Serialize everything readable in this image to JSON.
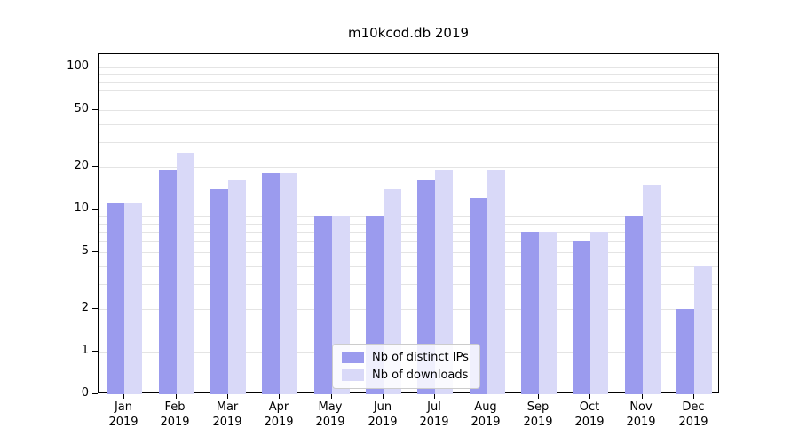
{
  "chart_data": {
    "type": "bar",
    "title": "m10kcod.db 2019",
    "categories": [
      "Jan 2019",
      "Feb 2019",
      "Mar 2019",
      "Apr 2019",
      "May 2019",
      "Jun 2019",
      "Jul 2019",
      "Aug 2019",
      "Sep 2019",
      "Oct 2019",
      "Nov 2019",
      "Dec 2019"
    ],
    "series": [
      {
        "name": "Nb of distinct IPs",
        "color": "#9b9bee",
        "values": [
          11,
          19,
          14,
          18,
          9,
          9,
          16,
          12,
          7,
          6,
          9,
          2
        ]
      },
      {
        "name": "Nb of downloads",
        "color": "#d9d9f8",
        "values": [
          11,
          25,
          16,
          18,
          9,
          14,
          19,
          19,
          7,
          7,
          15,
          4
        ]
      }
    ],
    "yscale": "symlog",
    "yticks": [
      0,
      1,
      2,
      5,
      10,
      20,
      50,
      100
    ],
    "ylim": [
      0,
      120
    ],
    "xlabel": "",
    "ylabel": "",
    "grid": "horizontal",
    "legend_position": "lower center"
  }
}
